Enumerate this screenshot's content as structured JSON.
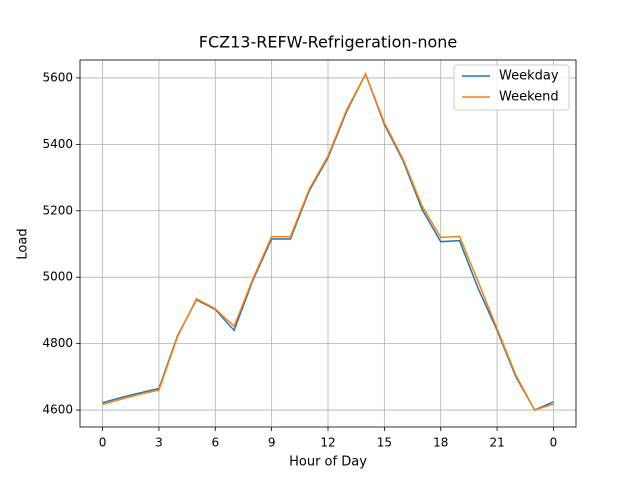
{
  "chart_data": {
    "type": "line",
    "title": "FCZ13-REFW-Refrigeration-none",
    "xlabel": "Hour of Day",
    "ylabel": "Load",
    "x": [
      0,
      1,
      2,
      3,
      4,
      5,
      6,
      7,
      8,
      9,
      10,
      11,
      12,
      13,
      14,
      15,
      16,
      17,
      18,
      19,
      20,
      21,
      22,
      23,
      24
    ],
    "series": [
      {
        "name": "Weekday",
        "color": "#1f77b4",
        "values": [
          4622,
          4638,
          4652,
          4665,
          4825,
          4932,
          4903,
          4840,
          4990,
          5115,
          5115,
          5260,
          5360,
          5500,
          5612,
          5460,
          5350,
          5205,
          5107,
          5110,
          4965,
          4840,
          4700,
          4600,
          4625
        ]
      },
      {
        "name": "Weekend",
        "color": "#ff7f0e",
        "values": [
          4617,
          4633,
          4648,
          4660,
          4822,
          4935,
          4905,
          4852,
          4995,
          5122,
          5122,
          5265,
          5365,
          5505,
          5612,
          5465,
          5355,
          5215,
          5120,
          5123,
          4985,
          4845,
          4705,
          4600,
          4618
        ]
      }
    ],
    "xlim": [
      -1.2,
      25.2
    ],
    "ylim": [
      4549,
      5654
    ],
    "xticks": [
      0,
      3,
      6,
      9,
      12,
      15,
      18,
      21,
      {
        "value": 24,
        "label": "0"
      }
    ],
    "yticks": [
      4600,
      4800,
      5000,
      5200,
      5400,
      5600
    ],
    "grid": true,
    "legend": "upper right"
  }
}
